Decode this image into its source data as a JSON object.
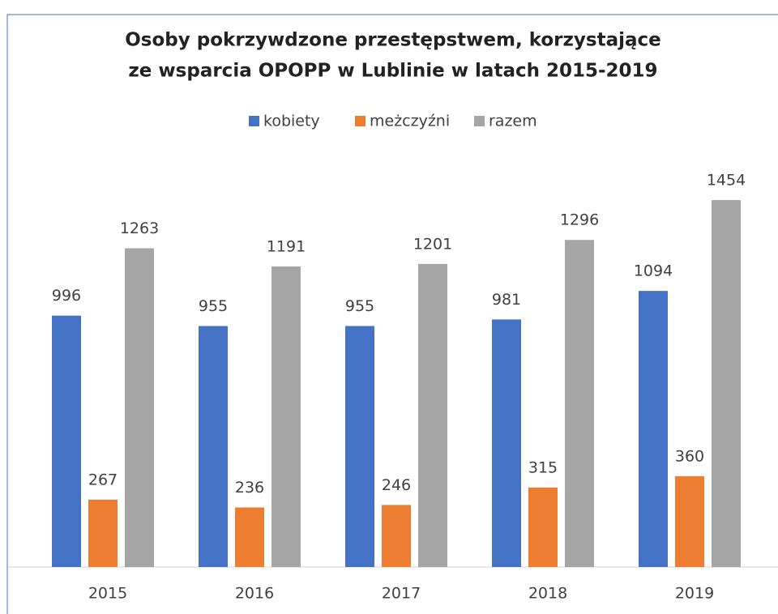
{
  "chart_data": {
    "type": "bar",
    "title": [
      "Osoby pokrzywdzone przestępstwem, korzystające",
      "ze wsparcia OPOPP w Lublinie w latach 2015-2019"
    ],
    "categories": [
      "2015",
      "2016",
      "2017",
      "2018",
      "2019"
    ],
    "series": [
      {
        "name": "kobiety",
        "color": "#4472c4",
        "values": [
          996,
          955,
          955,
          981,
          1094
        ]
      },
      {
        "name": "meżczyźni",
        "color": "#ed7d31",
        "values": [
          267,
          236,
          246,
          315,
          360
        ]
      },
      {
        "name": "razem",
        "color": "#a5a5a5",
        "values": [
          1263,
          1191,
          1201,
          1296,
          1454
        ]
      }
    ],
    "legend": "top"
  }
}
